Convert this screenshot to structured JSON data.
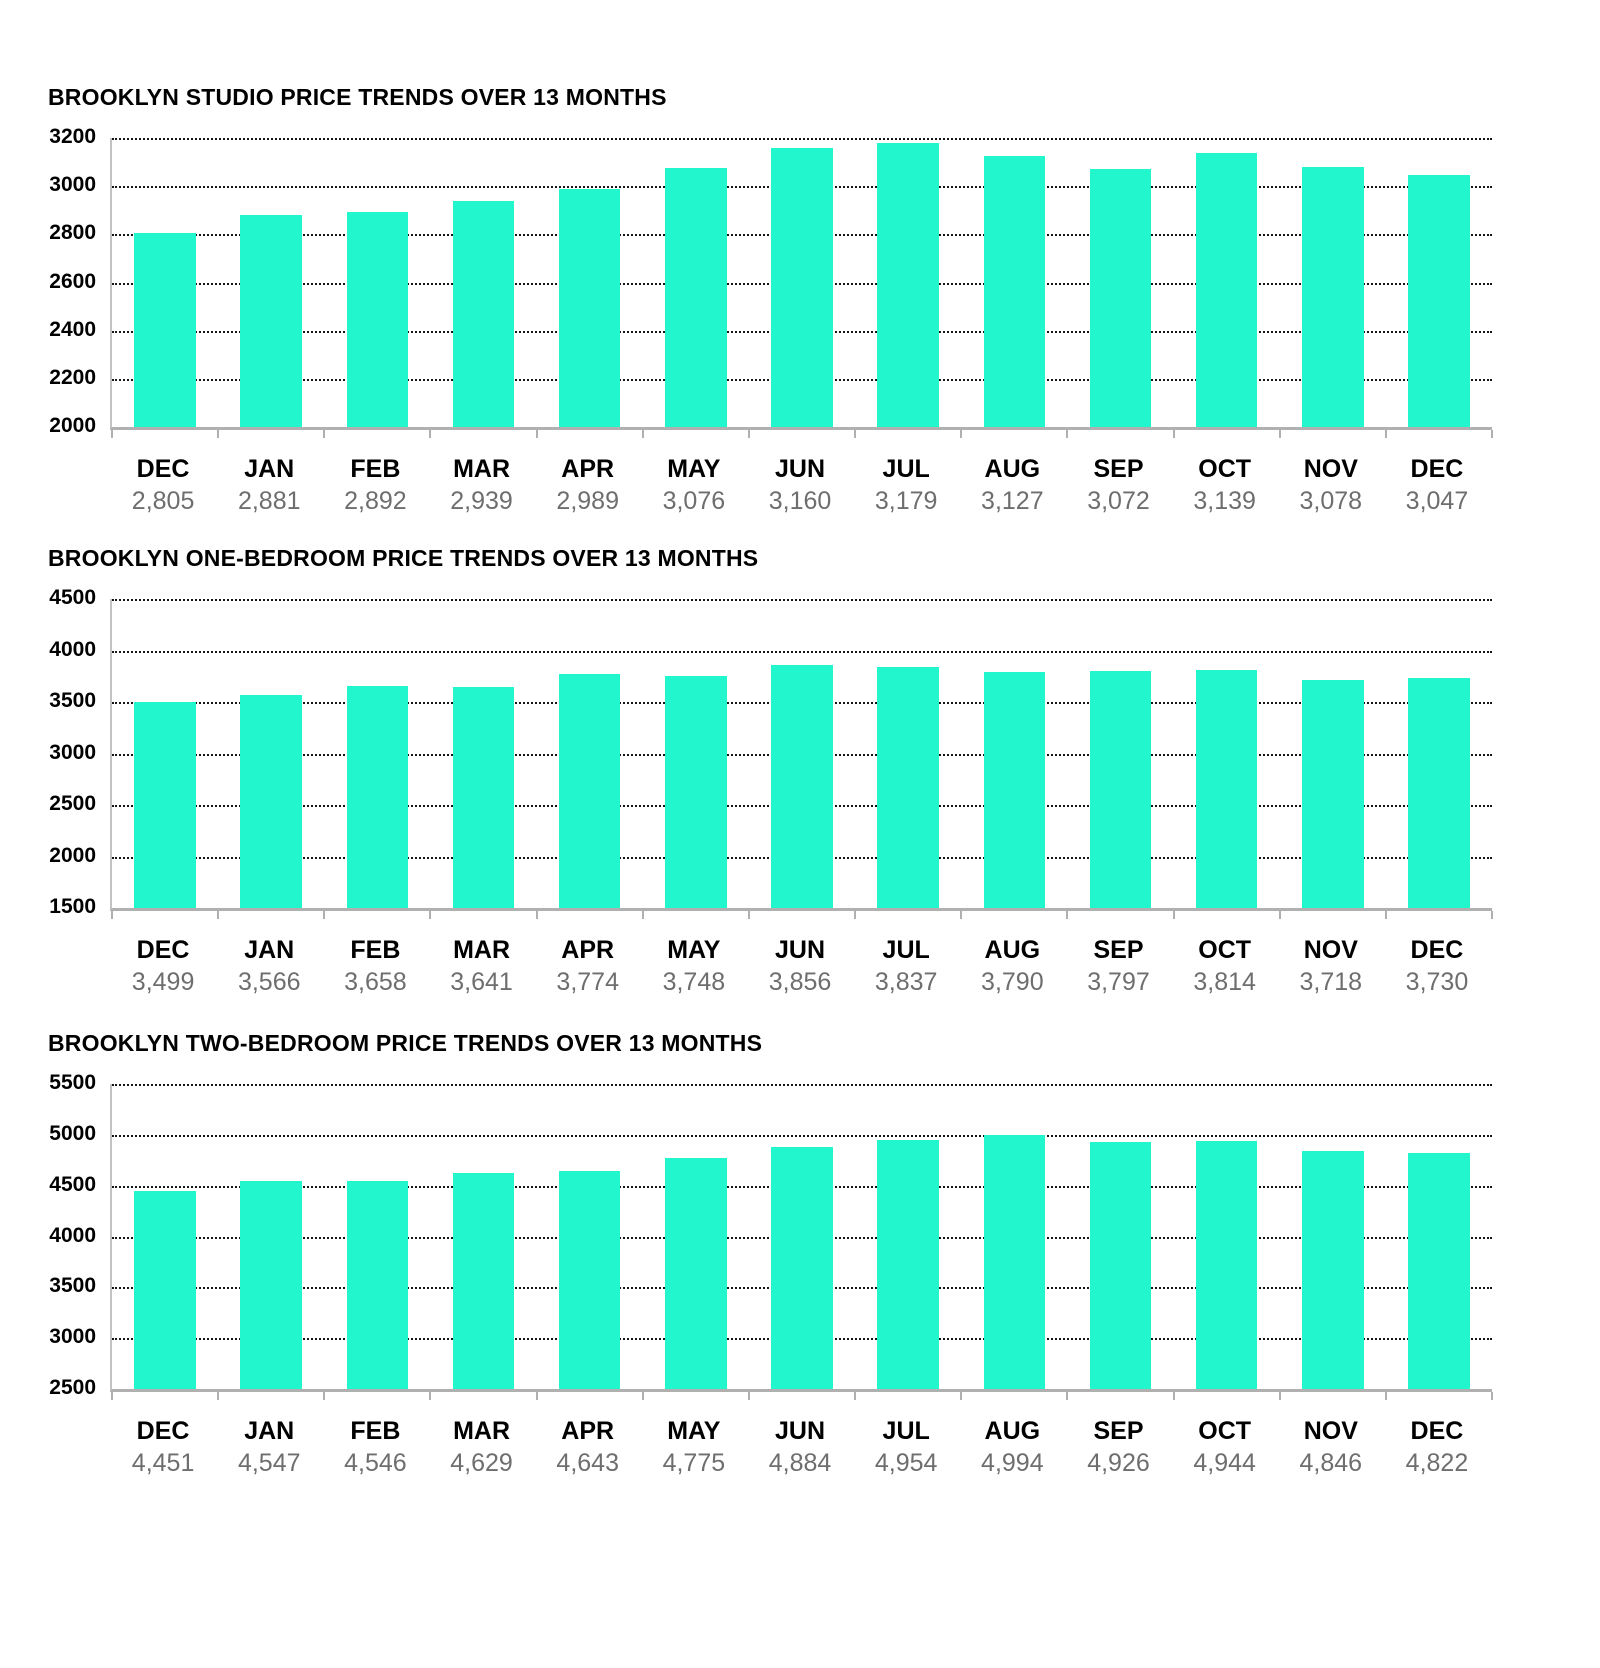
{
  "page": {
    "background": "#ffffff",
    "bar_color": "#21f6cd",
    "gridline_color": "#161616",
    "axis_color": "#b0b0b0",
    "value_text_color": "#6e6e6e"
  },
  "chart_data": [
    {
      "type": "bar",
      "title": "BROOKLYN STUDIO PRICE TRENDS OVER 13 MONTHS",
      "categories": [
        "DEC",
        "JAN",
        "FEB",
        "MAR",
        "APR",
        "MAY",
        "JUN",
        "JUL",
        "AUG",
        "SEP",
        "OCT",
        "NOV",
        "DEC"
      ],
      "values": [
        2805,
        2881,
        2892,
        2939,
        2989,
        3076,
        3160,
        3179,
        3127,
        3072,
        3139,
        3078,
        3047
      ],
      "value_labels": [
        "2,805",
        "2,881",
        "2,892",
        "2,939",
        "2,989",
        "3,076",
        "3,160",
        "3,179",
        "3,127",
        "3,072",
        "3,139",
        "3,078",
        "3,047"
      ],
      "ylim": [
        2000,
        3200
      ],
      "yticks": [
        3200,
        3000,
        2800,
        2600,
        2400,
        2200,
        2000
      ],
      "xlabel": "",
      "ylabel": "",
      "grid": true,
      "legend": false,
      "bar_color": "#21f6cd"
    },
    {
      "type": "bar",
      "title": "BROOKLYN ONE-BEDROOM PRICE TRENDS OVER 13 MONTHS",
      "categories": [
        "DEC",
        "JAN",
        "FEB",
        "MAR",
        "APR",
        "MAY",
        "JUN",
        "JUL",
        "AUG",
        "SEP",
        "OCT",
        "NOV",
        "DEC"
      ],
      "values": [
        3499,
        3566,
        3658,
        3641,
        3774,
        3748,
        3856,
        3837,
        3790,
        3797,
        3814,
        3718,
        3730
      ],
      "value_labels": [
        "3,499",
        "3,566",
        "3,658",
        "3,641",
        "3,774",
        "3,748",
        "3,856",
        "3,837",
        "3,790",
        "3,797",
        "3,814",
        "3,718",
        "3,730"
      ],
      "ylim": [
        1500,
        4500
      ],
      "yticks": [
        4500,
        4000,
        3500,
        3000,
        2500,
        2000,
        1500
      ],
      "xlabel": "",
      "ylabel": "",
      "grid": true,
      "legend": false,
      "bar_color": "#21f6cd"
    },
    {
      "type": "bar",
      "title": "BROOKLYN TWO-BEDROOM PRICE TRENDS OVER 13 MONTHS",
      "categories": [
        "DEC",
        "JAN",
        "FEB",
        "MAR",
        "APR",
        "MAY",
        "JUN",
        "JUL",
        "AUG",
        "SEP",
        "OCT",
        "NOV",
        "DEC"
      ],
      "values": [
        4451,
        4547,
        4546,
        4629,
        4643,
        4775,
        4884,
        4954,
        4994,
        4926,
        4944,
        4846,
        4822
      ],
      "value_labels": [
        "4,451",
        "4,547",
        "4,546",
        "4,629",
        "4,643",
        "4,775",
        "4,884",
        "4,954",
        "4,994",
        "4,926",
        "4,944",
        "4,846",
        "4,822"
      ],
      "ylim": [
        2500,
        5500
      ],
      "yticks": [
        5500,
        5000,
        4500,
        4000,
        3500,
        3000,
        2500
      ],
      "xlabel": "",
      "ylabel": "",
      "grid": true,
      "legend": false,
      "bar_color": "#21f6cd"
    }
  ]
}
